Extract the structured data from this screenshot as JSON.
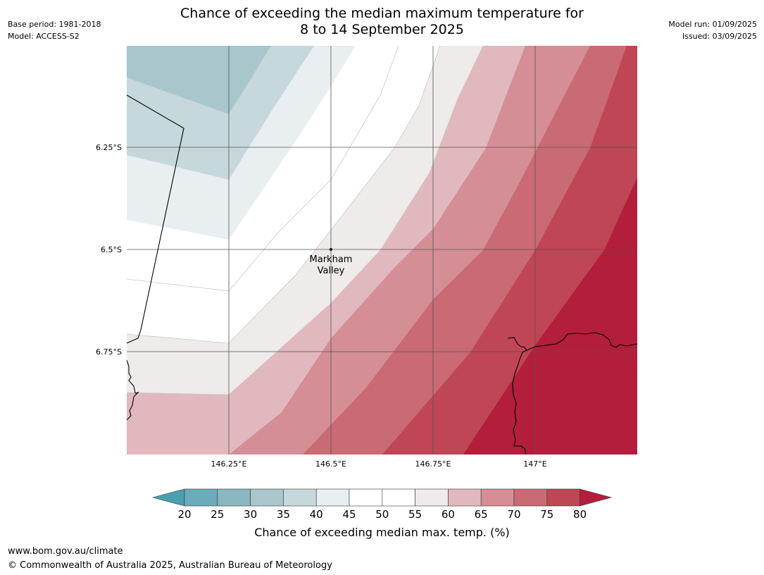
{
  "header": {
    "base_period": "Base period: 1981-2018",
    "model": "Model: ACCESS-S2",
    "model_run": "Model run: 01/09/2025",
    "issued": "Issued: 03/09/2025",
    "title_line1": "Chance of exceeding the median maximum temperature for",
    "title_line2": "8 to 14 September 2025"
  },
  "map": {
    "lat_labels": [
      "6.25°S",
      "6.5°S",
      "6.75°S"
    ],
    "lon_labels": [
      "146.25°E",
      "146.5°E",
      "146.75°E",
      "147°E"
    ],
    "place_label_line1": "Markham",
    "place_label_line2": "Valley"
  },
  "colorbar": {
    "ticks": [
      "20",
      "25",
      "30",
      "35",
      "40",
      "45",
      "50",
      "55",
      "60",
      "65",
      "70",
      "75",
      "80"
    ],
    "colors": [
      "#4aa0b0",
      "#6aacba",
      "#8ab7c0",
      "#a8c6cb",
      "#c6d8dc",
      "#e9eef1",
      "#ffffff",
      "#ffffff",
      "#eeebea",
      "#e1b8bd",
      "#d58e96",
      "#c96a74",
      "#bf4654",
      "#b21e3b"
    ],
    "title": "Chance of exceeding median max. temp. (%)"
  },
  "footer": {
    "url": "www.bom.gov.au/climate",
    "copyright": "© Commonwealth of Australia 2025, Australian Bureau of Meteorology"
  }
}
